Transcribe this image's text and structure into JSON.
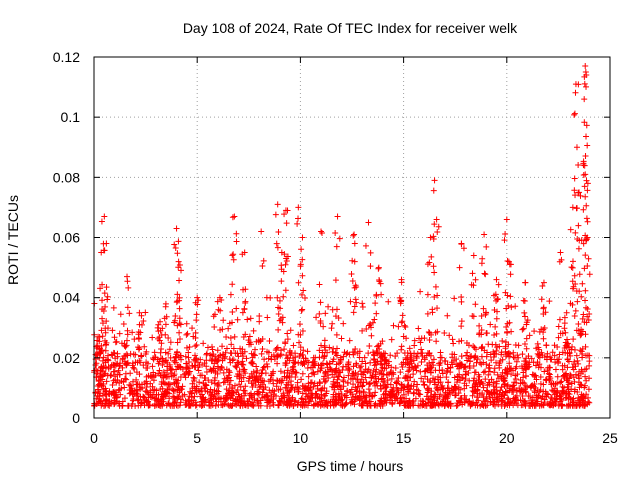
{
  "chart_data": {
    "type": "scatter",
    "title": "Day 108 of 2024, Rate Of TEC Index for receiver welk",
    "xlabel": "GPS time / hours",
    "ylabel": "ROTI / TECUs",
    "xlim": [
      0,
      25
    ],
    "ylim": [
      0,
      0.12
    ],
    "x_ticks": [
      0,
      5,
      10,
      15,
      20,
      25
    ],
    "x_tick_labels": [
      "0",
      "5",
      "10",
      "15",
      "20",
      "25"
    ],
    "y_ticks": [
      0,
      0.02,
      0.04,
      0.06,
      0.08,
      0.1,
      0.12
    ],
    "y_tick_labels": [
      "0",
      "0.02",
      "0.04",
      "0.06",
      "0.08",
      "0.1",
      "0.12"
    ],
    "grid": true,
    "marker": "+",
    "marker_color": "#ff0000",
    "series": [
      {
        "name": "ROTI",
        "color": "#ff0000",
        "note": "dense cloud 0.005-0.02 TECU/s over 0-24 h; peaks listed",
        "peaks": [
          {
            "x": 0.2,
            "y": 0.027
          },
          {
            "x": 0.35,
            "y": 0.055
          },
          {
            "x": 0.5,
            "y": 0.067
          },
          {
            "x": 0.6,
            "y": 0.058
          },
          {
            "x": 1.6,
            "y": 0.047
          },
          {
            "x": 2.2,
            "y": 0.035
          },
          {
            "x": 3.2,
            "y": 0.032
          },
          {
            "x": 4.0,
            "y": 0.063
          },
          {
            "x": 4.1,
            "y": 0.052
          },
          {
            "x": 5.0,
            "y": 0.04
          },
          {
            "x": 6.1,
            "y": 0.04
          },
          {
            "x": 6.8,
            "y": 0.067
          },
          {
            "x": 7.3,
            "y": 0.055
          },
          {
            "x": 8.1,
            "y": 0.062
          },
          {
            "x": 8.9,
            "y": 0.071
          },
          {
            "x": 9.1,
            "y": 0.055
          },
          {
            "x": 9.3,
            "y": 0.069
          },
          {
            "x": 9.9,
            "y": 0.07
          },
          {
            "x": 10.1,
            "y": 0.06
          },
          {
            "x": 11.0,
            "y": 0.062
          },
          {
            "x": 11.8,
            "y": 0.067
          },
          {
            "x": 12.6,
            "y": 0.061
          },
          {
            "x": 13.3,
            "y": 0.065
          },
          {
            "x": 13.8,
            "y": 0.05
          },
          {
            "x": 14.9,
            "y": 0.046
          },
          {
            "x": 15.8,
            "y": 0.042
          },
          {
            "x": 16.3,
            "y": 0.06
          },
          {
            "x": 16.5,
            "y": 0.079
          },
          {
            "x": 16.6,
            "y": 0.066
          },
          {
            "x": 17.8,
            "y": 0.058
          },
          {
            "x": 18.4,
            "y": 0.054
          },
          {
            "x": 18.9,
            "y": 0.061
          },
          {
            "x": 19.5,
            "y": 0.046
          },
          {
            "x": 20.0,
            "y": 0.066
          },
          {
            "x": 20.1,
            "y": 0.052
          },
          {
            "x": 20.9,
            "y": 0.045
          },
          {
            "x": 21.8,
            "y": 0.045
          },
          {
            "x": 22.6,
            "y": 0.055
          },
          {
            "x": 22.9,
            "y": 0.035
          },
          {
            "x": 23.2,
            "y": 0.07
          },
          {
            "x": 23.35,
            "y": 0.111
          },
          {
            "x": 23.4,
            "y": 0.09
          },
          {
            "x": 23.5,
            "y": 0.075
          },
          {
            "x": 23.8,
            "y": 0.117
          },
          {
            "x": 23.85,
            "y": 0.114
          },
          {
            "x": 23.75,
            "y": 0.106
          },
          {
            "x": 23.8,
            "y": 0.081
          },
          {
            "x": 23.9,
            "y": 0.06
          }
        ]
      }
    ]
  }
}
